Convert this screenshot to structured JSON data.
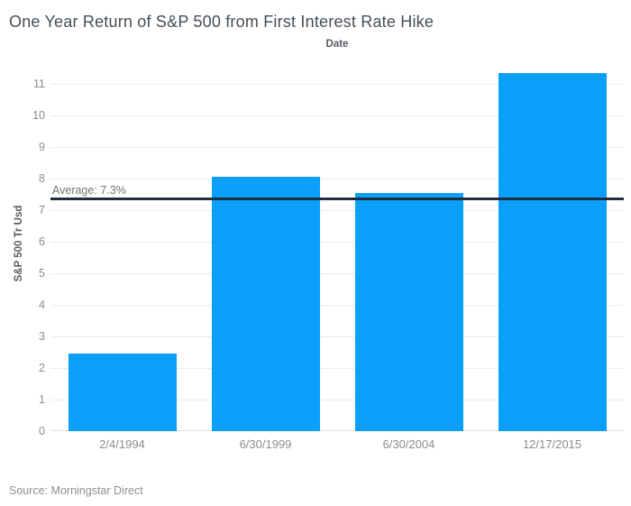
{
  "title": "One Year Return of S&P 500 from First Interest Rate Hike",
  "source_note": "Source: Morningstar Direct",
  "chart_data": {
    "type": "bar",
    "title": "One Year Return of S&P 500 from First Interest Rate Hike",
    "xlabel": "Date",
    "ylabel": "S&P 500 Tr Usd",
    "categories": [
      "2/4/1994",
      "6/30/1999",
      "6/30/2004",
      "12/17/2015"
    ],
    "values": [
      2.45,
      8.05,
      7.55,
      11.35
    ],
    "yticks": [
      0,
      1,
      2,
      3,
      4,
      5,
      6,
      7,
      8,
      9,
      10,
      11
    ],
    "ylim": [
      0,
      11.86
    ],
    "grid": "horizontal-light",
    "legend": false,
    "annotation": {
      "label": "Average: 7.3%",
      "value": 7.35
    },
    "colors": {
      "bar": "#0aa0fa",
      "average_line": "#1c2f40",
      "gridline": "#ececec"
    }
  }
}
